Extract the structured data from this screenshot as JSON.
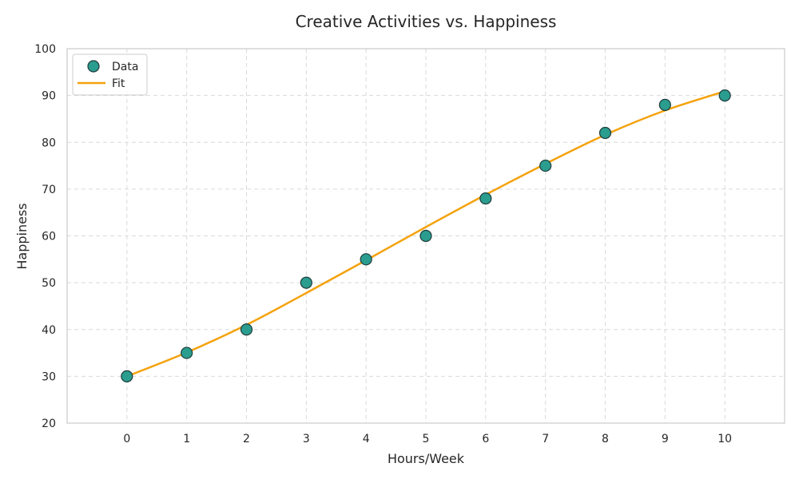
{
  "chart_data": {
    "type": "scatter",
    "title": "Creative Activities vs. Happiness",
    "xlabel": "Hours/Week",
    "ylabel": "Happiness",
    "xlim": [
      -1,
      11
    ],
    "ylim": [
      20,
      100
    ],
    "xticks": [
      0,
      1,
      2,
      3,
      4,
      5,
      6,
      7,
      8,
      9,
      10
    ],
    "yticks": [
      20,
      30,
      40,
      50,
      60,
      70,
      80,
      90,
      100
    ],
    "grid": true,
    "legend_position": "top-left",
    "series": [
      {
        "name": "Data",
        "kind": "scatter",
        "color": "#2a9d8f",
        "edge_color": "#1f3b3a",
        "x": [
          0,
          1,
          2,
          3,
          4,
          5,
          6,
          7,
          8,
          9,
          10
        ],
        "y": [
          30,
          35,
          40,
          50,
          55,
          60,
          68,
          75,
          82,
          88,
          90
        ]
      },
      {
        "name": "Fit",
        "kind": "line",
        "color": "#f4a20c",
        "x": [
          0,
          1,
          2,
          3,
          4,
          5,
          6,
          7,
          8,
          9,
          10
        ],
        "y": [
          30,
          35.1,
          41,
          47.8,
          54.8,
          61.9,
          68.8,
          75.4,
          81.6,
          86.8,
          90.9
        ]
      }
    ]
  }
}
